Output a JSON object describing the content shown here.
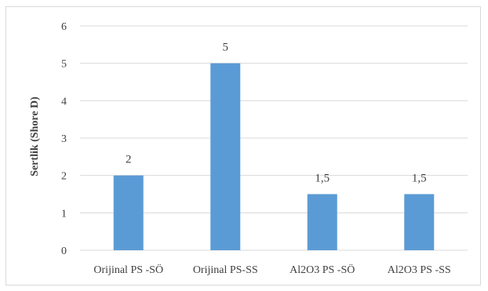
{
  "chart_data": {
    "type": "bar",
    "title": "",
    "xlabel": "",
    "ylabel": "Sertlik (Shore D)",
    "categories": [
      "Orijinal PS -SÖ",
      "Orijinal PS-SS",
      "Al2O3 PS -SÖ",
      "Al2O3 PS -SS"
    ],
    "values": [
      2,
      5,
      1.5,
      1.5
    ],
    "data_labels": [
      "2",
      "5",
      "1,5",
      "1,5"
    ],
    "ylim": [
      0,
      6
    ],
    "yticks": [
      "0",
      "1",
      "2",
      "3",
      "4",
      "5",
      "6"
    ],
    "grid": true,
    "legend": "none",
    "bar_color": "#5b9bd5",
    "grid_color": "#d9d9d9"
  }
}
